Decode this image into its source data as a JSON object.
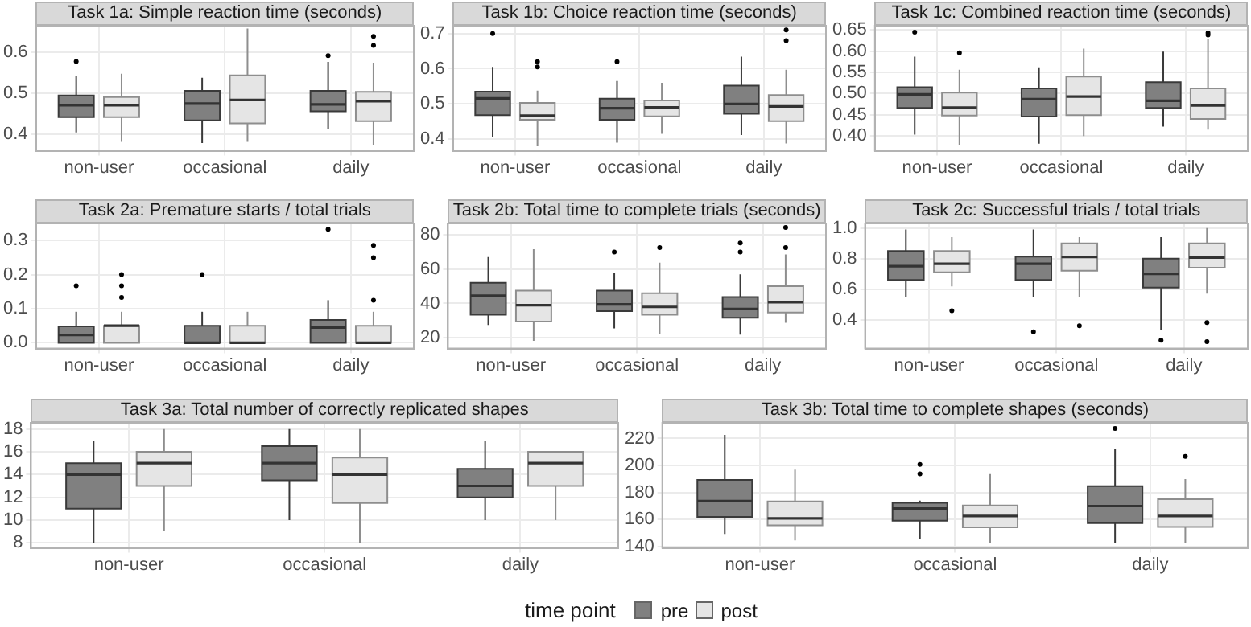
{
  "chart_data": [
    {
      "type": "box",
      "title": "Task 1a: Simple reaction time (seconds)",
      "categories": [
        "non-user",
        "occasional",
        "daily"
      ],
      "ylim": [
        0.36,
        0.665
      ],
      "yticks": [
        0.4,
        0.5,
        0.6
      ],
      "grid": true,
      "series": [
        {
          "color": "#808080",
          "boxes": [
            {
              "low": 0.405,
              "q1": 0.442,
              "median": 0.471,
              "q3": 0.495,
              "high": 0.543,
              "outliers": [
                0.578
              ]
            },
            {
              "low": 0.379,
              "q1": 0.434,
              "median": 0.475,
              "q3": 0.506,
              "high": 0.538
            },
            {
              "low": 0.412,
              "q1": 0.456,
              "median": 0.473,
              "q3": 0.506,
              "high": 0.577,
              "outliers": [
                0.592
              ]
            }
          ]
        },
        {
          "color": "#e5e5e5",
          "boxes": [
            {
              "low": 0.382,
              "q1": 0.442,
              "median": 0.471,
              "q3": 0.491,
              "high": 0.548
            },
            {
              "low": 0.382,
              "q1": 0.427,
              "median": 0.484,
              "q3": 0.544,
              "high": 0.658
            },
            {
              "low": 0.373,
              "q1": 0.432,
              "median": 0.481,
              "q3": 0.504,
              "high": 0.575,
              "outliers": [
                0.639,
                0.617
              ]
            }
          ]
        }
      ]
    },
    {
      "type": "box",
      "title": "Task 1b: Choice reaction time (seconds)",
      "categories": [
        "non-user",
        "occasional",
        "daily"
      ],
      "ylim": [
        0.367,
        0.722
      ],
      "yticks": [
        0.4,
        0.5,
        0.6,
        0.7
      ],
      "grid": true,
      "series": [
        {
          "color": "#808080",
          "boxes": [
            {
              "low": 0.405,
              "q1": 0.468,
              "median": 0.516,
              "q3": 0.535,
              "high": 0.605,
              "outliers": [
                0.7
              ]
            },
            {
              "low": 0.39,
              "q1": 0.455,
              "median": 0.488,
              "q3": 0.515,
              "high": 0.565,
              "outliers": [
                0.62
              ]
            },
            {
              "low": 0.412,
              "q1": 0.472,
              "median": 0.5,
              "q3": 0.552,
              "high": 0.634
            }
          ]
        },
        {
          "color": "#e5e5e5",
          "boxes": [
            {
              "low": 0.38,
              "q1": 0.455,
              "median": 0.467,
              "q3": 0.503,
              "high": 0.538,
              "outliers": [
                0.62,
                0.605
              ]
            },
            {
              "low": 0.415,
              "q1": 0.465,
              "median": 0.49,
              "q3": 0.51,
              "high": 0.56
            },
            {
              "low": 0.388,
              "q1": 0.451,
              "median": 0.493,
              "q3": 0.525,
              "high": 0.597,
              "outliers": [
                0.71,
                0.68
              ]
            }
          ]
        }
      ]
    },
    {
      "type": "box",
      "title": "Task 1c: Combined reaction time (seconds)",
      "categories": [
        "non-user",
        "occasional",
        "daily"
      ],
      "ylim": [
        0.365,
        0.66
      ],
      "yticks": [
        {
          "value": 0.4,
          "label": "0.40"
        },
        {
          "value": 0.45,
          "label": "0.45"
        },
        {
          "value": 0.5,
          "label": "0.50"
        },
        {
          "value": 0.55,
          "label": "0.55"
        },
        {
          "value": 0.6,
          "label": "0.60"
        },
        {
          "value": 0.65,
          "label": "0.65"
        }
      ],
      "grid": true,
      "series": [
        {
          "color": "#808080",
          "boxes": [
            {
              "low": 0.403,
              "q1": 0.466,
              "median": 0.498,
              "q3": 0.515,
              "high": 0.587,
              "outliers": [
                0.645
              ]
            },
            {
              "low": 0.382,
              "q1": 0.446,
              "median": 0.487,
              "q3": 0.512,
              "high": 0.562
            },
            {
              "low": 0.422,
              "q1": 0.466,
              "median": 0.483,
              "q3": 0.527,
              "high": 0.599
            }
          ]
        },
        {
          "color": "#e5e5e5",
          "boxes": [
            {
              "low": 0.378,
              "q1": 0.448,
              "median": 0.467,
              "q3": 0.502,
              "high": 0.556,
              "outliers": [
                0.596
              ]
            },
            {
              "low": 0.4,
              "q1": 0.449,
              "median": 0.493,
              "q3": 0.54,
              "high": 0.606
            },
            {
              "low": 0.415,
              "q1": 0.44,
              "median": 0.472,
              "q3": 0.512,
              "high": 0.629,
              "outliers": [
                0.643,
                0.638
              ]
            }
          ]
        }
      ]
    },
    {
      "type": "box",
      "title": "Task 2a: Premature starts / total trials",
      "categories": [
        "non-user",
        "occasional",
        "daily"
      ],
      "ylim": [
        -0.017,
        0.35
      ],
      "yticks": [
        {
          "value": 0,
          "label": "0.0"
        },
        {
          "value": 0.1,
          "label": "0.1"
        },
        {
          "value": 0.2,
          "label": "0.2"
        },
        {
          "value": 0.3,
          "label": "0.3"
        }
      ],
      "grid": true,
      "series": [
        {
          "color": "#808080",
          "boxes": [
            {
              "low": 0,
              "q1": 0,
              "median": 0.023,
              "q3": 0.048,
              "high": 0.091,
              "outliers": [
                0.167
              ]
            },
            {
              "low": 0,
              "q1": 0,
              "median": 0,
              "q3": 0.05,
              "high": 0.091,
              "outliers": [
                0.2
              ]
            },
            {
              "low": 0,
              "q1": 0,
              "median": 0.045,
              "q3": 0.067,
              "high": 0.125,
              "outliers": [
                0.333
              ]
            }
          ]
        },
        {
          "color": "#e5e5e5",
          "boxes": [
            {
              "low": 0,
              "q1": 0,
              "median": 0.05,
              "q3": 0.05,
              "high": 0.091,
              "outliers": [
                0.2,
                0.167,
                0.133
              ]
            },
            {
              "low": 0,
              "q1": 0,
              "median": 0,
              "q3": 0.05,
              "high": 0.091
            },
            {
              "low": 0,
              "q1": 0,
              "median": 0,
              "q3": 0.05,
              "high": 0.091,
              "outliers": [
                0.286,
                0.25,
                0.125
              ]
            }
          ]
        }
      ]
    },
    {
      "type": "box",
      "title": "Task 2b: Total time to complete trials (seconds)",
      "categories": [
        "non-user",
        "occasional",
        "daily"
      ],
      "ylim": [
        13.7,
        86.6
      ],
      "yticks": [
        20,
        40,
        60,
        80
      ],
      "grid": true,
      "series": [
        {
          "color": "#808080",
          "boxes": [
            {
              "low": 27.5,
              "q1": 33.4,
              "median": 44.5,
              "q3": 52,
              "high": 67
            },
            {
              "low": 25.5,
              "q1": 35.5,
              "median": 39.5,
              "q3": 47.5,
              "high": 58,
              "outliers": [
                70
              ]
            },
            {
              "low": 21.8,
              "q1": 31.7,
              "median": 36.8,
              "q3": 43.7,
              "high": 57,
              "outliers": [
                75.2,
                70
              ]
            }
          ]
        },
        {
          "color": "#e5e5e5",
          "boxes": [
            {
              "low": 18.2,
              "q1": 29.5,
              "median": 39,
              "q3": 47.5,
              "high": 71.6
            },
            {
              "low": 22,
              "q1": 33.4,
              "median": 38,
              "q3": 46,
              "high": 63.8,
              "outliers": [
                72.5
              ]
            },
            {
              "low": 28.7,
              "q1": 34.7,
              "median": 40.7,
              "q3": 50,
              "high": 68.6,
              "outliers": [
                84.2,
                72.5
              ]
            }
          ]
        }
      ]
    },
    {
      "type": "box",
      "title": "Task 2c: Successful trials / total trials",
      "categories": [
        "non-user",
        "occasional",
        "daily"
      ],
      "ylim": [
        0.21,
        1.03
      ],
      "yticks": [
        {
          "value": 0.4,
          "label": "0.4"
        },
        {
          "value": 0.6,
          "label": "0.6"
        },
        {
          "value": 0.8,
          "label": "0.8"
        },
        {
          "value": 1,
          "label": "1.0"
        }
      ],
      "grid": true,
      "series": [
        {
          "color": "#808080",
          "boxes": [
            {
              "low": 0.55,
              "q1": 0.66,
              "median": 0.75,
              "q3": 0.85,
              "high": 0.99
            },
            {
              "low": 0.55,
              "q1": 0.66,
              "median": 0.766,
              "q3": 0.813,
              "high": 0.99,
              "outliers": [
                0.32
              ]
            },
            {
              "low": 0.335,
              "q1": 0.61,
              "median": 0.7,
              "q3": 0.8,
              "high": 0.94,
              "outliers": [
                0.265
              ]
            }
          ]
        },
        {
          "color": "#e5e5e5",
          "boxes": [
            {
              "low": 0.617,
              "q1": 0.71,
              "median": 0.766,
              "q3": 0.85,
              "high": 0.94,
              "outliers": [
                0.458
              ]
            },
            {
              "low": 0.55,
              "q1": 0.72,
              "median": 0.81,
              "q3": 0.9,
              "high": 0.94,
              "outliers": [
                0.36
              ]
            },
            {
              "low": 0.57,
              "q1": 0.74,
              "median": 0.807,
              "q3": 0.9,
              "high": 1,
              "outliers": [
                0.38,
                0.255
              ]
            }
          ]
        }
      ]
    },
    {
      "type": "box",
      "title": "Task 3a: Total number of correctly replicated shapes",
      "categories": [
        "non-user",
        "occasional",
        "daily"
      ],
      "ylim": [
        7.55,
        18.55
      ],
      "yticks": [
        8,
        10,
        12,
        14,
        16,
        18
      ],
      "grid": true,
      "series": [
        {
          "color": "#808080",
          "boxes": [
            {
              "low": 8,
              "q1": 11,
              "median": 14,
              "q3": 15,
              "high": 17
            },
            {
              "low": 10,
              "q1": 13.5,
              "median": 15,
              "q3": 16.5,
              "high": 18
            },
            {
              "low": 10,
              "q1": 12,
              "median": 13,
              "q3": 14.5,
              "high": 17
            }
          ]
        },
        {
          "color": "#e5e5e5",
          "boxes": [
            {
              "low": 9,
              "q1": 13,
              "median": 15,
              "q3": 16,
              "high": 18
            },
            {
              "low": 8,
              "q1": 11.5,
              "median": 14,
              "q3": 15.5,
              "high": 18
            },
            {
              "low": 10,
              "q1": 13,
              "median": 15,
              "q3": 16,
              "high": 16
            }
          ]
        }
      ]
    },
    {
      "type": "box",
      "title": "Task 3b: Total time to complete shapes (seconds)",
      "categories": [
        "non-user",
        "occasional",
        "daily"
      ],
      "ylim": [
        139,
        231.6
      ],
      "yticks": [
        140,
        160,
        180,
        200,
        220
      ],
      "grid": true,
      "legend": "bottom",
      "legend_title": "time point",
      "series": [
        {
          "name": "pre",
          "color": "#808080",
          "boxes": [
            {
              "low": 149.3,
              "q1": 161.9,
              "median": 173.6,
              "q3": 189.3,
              "high": 222.7
            },
            {
              "low": 145.8,
              "q1": 159.2,
              "median": 168.2,
              "q3": 172.4,
              "high": 174,
              "outliers": [
                200.8,
                193.8
              ]
            },
            {
              "low": 142.7,
              "q1": 157.3,
              "median": 170,
              "q3": 184.7,
              "high": 211.9,
              "outliers": [
                227.4
              ]
            }
          ]
        },
        {
          "name": "post",
          "color": "#e5e5e5",
          "boxes": [
            {
              "low": 144.6,
              "q1": 155.7,
              "median": 160.8,
              "q3": 173.5,
              "high": 196.9
            },
            {
              "low": 143,
              "q1": 154.2,
              "median": 162.7,
              "q3": 170.5,
              "high": 193.7
            },
            {
              "low": 142.3,
              "q1": 154.6,
              "median": 162.7,
              "q3": 175,
              "high": 190,
              "outliers": [
                206.8
              ]
            }
          ]
        }
      ]
    }
  ]
}
